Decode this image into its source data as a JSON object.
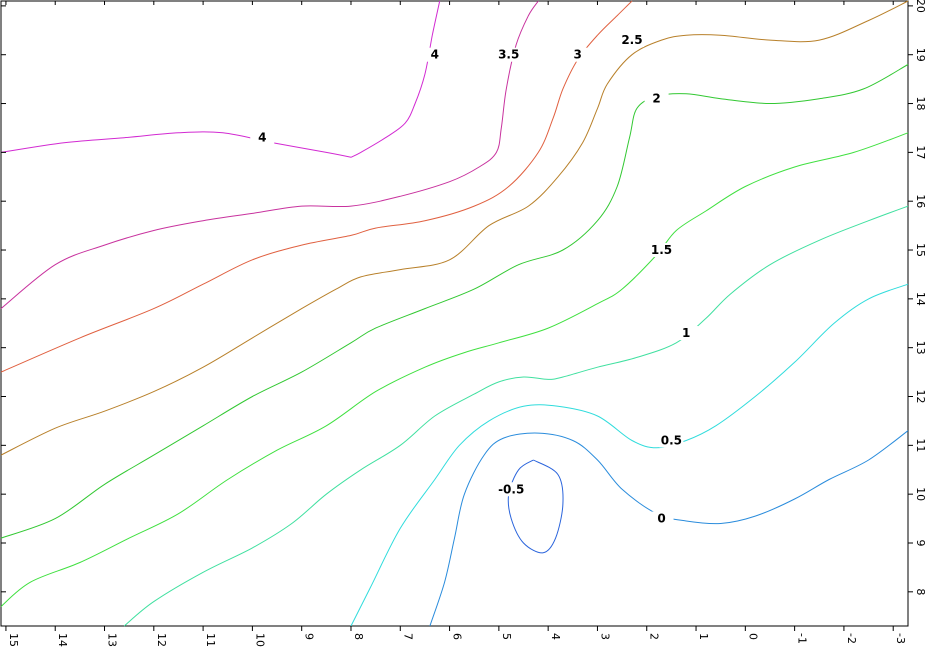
{
  "chart_data": {
    "type": "contour",
    "title": "",
    "xlabel": "",
    "ylabel": "",
    "x_ticks": [
      "15",
      "14",
      "13",
      "12",
      "11",
      "10",
      "9",
      "8",
      "7",
      "6",
      "5",
      "4",
      "3",
      "2",
      "1",
      "0",
      "-1",
      "-2",
      "-3"
    ],
    "y_ticks": [
      "20",
      "19",
      "18",
      "17",
      "16",
      "15",
      "14",
      "13",
      "12",
      "11",
      "10",
      "9",
      "8"
    ],
    "xlim": [
      15.1,
      -3.3
    ],
    "ylim": [
      7.3,
      20.1
    ],
    "levels": [
      -0.5,
      0,
      0.5,
      1,
      1.5,
      2,
      2.5,
      3,
      3.5,
      4
    ],
    "contours": [
      {
        "level": "4",
        "color": "#d22ad2",
        "label_at": [
          6.3,
          19.0
        ],
        "points": [
          [
            6.2,
            20.1
          ],
          [
            6.35,
            19.4
          ],
          [
            6.5,
            18.6
          ],
          [
            6.7,
            18.0
          ],
          [
            6.9,
            17.6
          ],
          [
            7.3,
            17.3
          ],
          [
            7.8,
            17.0
          ],
          [
            8.0,
            16.9
          ]
        ]
      },
      {
        "level": "4",
        "color": "#d22ad2",
        "label_at": [
          9.8,
          17.3
        ],
        "points": [
          [
            15.1,
            17.0
          ],
          [
            13.8,
            17.2
          ],
          [
            12.6,
            17.3
          ],
          [
            11.5,
            17.4
          ],
          [
            10.6,
            17.4
          ],
          [
            9.6,
            17.2
          ],
          [
            8.5,
            17.0
          ],
          [
            8.0,
            16.9
          ]
        ]
      },
      {
        "level": "3.5",
        "color": "#c8329e",
        "label_at": [
          4.8,
          19.0
        ],
        "points": [
          [
            4.2,
            20.1
          ],
          [
            4.4,
            19.8
          ],
          [
            4.65,
            19.2
          ],
          [
            4.85,
            18.3
          ],
          [
            4.95,
            17.5
          ],
          [
            5.05,
            17.0
          ],
          [
            5.4,
            16.7
          ],
          [
            6.0,
            16.4
          ],
          [
            7.0,
            16.1
          ],
          [
            8.0,
            15.9
          ],
          [
            9.0,
            15.9
          ],
          [
            10.0,
            15.75
          ],
          [
            11.0,
            15.6
          ],
          [
            12.0,
            15.4
          ],
          [
            13.0,
            15.1
          ],
          [
            14.0,
            14.7
          ],
          [
            15.1,
            13.8
          ]
        ]
      },
      {
        "level": "3",
        "color": "#e06040",
        "label_at": [
          3.4,
          19.0
        ],
        "points": [
          [
            2.3,
            20.1
          ],
          [
            2.6,
            19.8
          ],
          [
            3.0,
            19.4
          ],
          [
            3.4,
            18.9
          ],
          [
            3.7,
            18.3
          ],
          [
            3.9,
            17.7
          ],
          [
            4.2,
            17.0
          ],
          [
            4.8,
            16.3
          ],
          [
            5.5,
            15.9
          ],
          [
            6.5,
            15.6
          ],
          [
            7.5,
            15.45
          ],
          [
            8.0,
            15.3
          ],
          [
            9.0,
            15.1
          ],
          [
            10.0,
            14.8
          ],
          [
            11.0,
            14.3
          ],
          [
            12.0,
            13.8
          ],
          [
            13.5,
            13.2
          ],
          [
            15.1,
            12.5
          ]
        ]
      },
      {
        "level": "2.5",
        "color": "#b8802a",
        "label_at": [
          2.3,
          19.3
        ],
        "points": [
          [
            -3.3,
            20.1
          ],
          [
            -2.5,
            19.7
          ],
          [
            -1.5,
            19.3
          ],
          [
            -0.5,
            19.3
          ],
          [
            0.5,
            19.4
          ],
          [
            1.2,
            19.4
          ],
          [
            1.7,
            19.3
          ],
          [
            2.3,
            19.0
          ],
          [
            2.8,
            18.4
          ],
          [
            3.0,
            17.9
          ],
          [
            3.3,
            17.2
          ],
          [
            3.8,
            16.5
          ],
          [
            4.4,
            15.9
          ],
          [
            5.2,
            15.5
          ],
          [
            6.0,
            14.8
          ],
          [
            7.0,
            14.6
          ],
          [
            7.8,
            14.45
          ],
          [
            8.3,
            14.2
          ],
          [
            9.0,
            13.8
          ],
          [
            10.0,
            13.2
          ],
          [
            11.0,
            12.6
          ],
          [
            12.0,
            12.1
          ],
          [
            13.0,
            11.7
          ],
          [
            14.0,
            11.35
          ],
          [
            15.1,
            10.8
          ]
        ]
      },
      {
        "level": "2",
        "color": "#32c832",
        "label_at": [
          1.8,
          18.1
        ],
        "points": [
          [
            -3.3,
            18.8
          ],
          [
            -2.4,
            18.3
          ],
          [
            -1.5,
            18.1
          ],
          [
            -0.5,
            18.0
          ],
          [
            0.5,
            18.1
          ],
          [
            1.2,
            18.2
          ],
          [
            1.8,
            18.15
          ],
          [
            2.2,
            17.9
          ],
          [
            2.35,
            17.3
          ],
          [
            2.6,
            16.3
          ],
          [
            3.0,
            15.6
          ],
          [
            3.7,
            15.0
          ],
          [
            4.6,
            14.7
          ],
          [
            5.5,
            14.2
          ],
          [
            6.5,
            13.8
          ],
          [
            7.5,
            13.4
          ],
          [
            8.0,
            13.1
          ],
          [
            9.0,
            12.5
          ],
          [
            10.0,
            12.0
          ],
          [
            11.0,
            11.4
          ],
          [
            12.0,
            10.8
          ],
          [
            13.0,
            10.2
          ],
          [
            14.0,
            9.5
          ],
          [
            15.1,
            9.1
          ]
        ]
      },
      {
        "level": "1.5",
        "color": "#40e040",
        "label_at": [
          1.7,
          15.0
        ],
        "points": [
          [
            -3.3,
            17.4
          ],
          [
            -2.2,
            17.0
          ],
          [
            -1.0,
            16.7
          ],
          [
            0.0,
            16.3
          ],
          [
            0.8,
            15.8
          ],
          [
            1.4,
            15.4
          ],
          [
            1.8,
            14.9
          ],
          [
            2.5,
            14.2
          ],
          [
            3.0,
            13.9
          ],
          [
            4.0,
            13.4
          ],
          [
            5.0,
            13.1
          ],
          [
            5.7,
            12.9
          ],
          [
            6.5,
            12.6
          ],
          [
            7.5,
            12.1
          ],
          [
            8.5,
            11.4
          ],
          [
            9.5,
            10.9
          ],
          [
            10.5,
            10.3
          ],
          [
            11.5,
            9.6
          ],
          [
            12.5,
            9.1
          ],
          [
            13.5,
            8.6
          ],
          [
            14.5,
            8.2
          ],
          [
            15.1,
            7.7
          ]
        ]
      },
      {
        "level": "1",
        "color": "#40e0a0",
        "label_at": [
          1.2,
          13.3
        ],
        "points": [
          [
            -3.3,
            15.9
          ],
          [
            -2.5,
            15.6
          ],
          [
            -1.5,
            15.2
          ],
          [
            -0.5,
            14.7
          ],
          [
            0.3,
            14.1
          ],
          [
            0.8,
            13.6
          ],
          [
            1.4,
            13.1
          ],
          [
            2.2,
            12.8
          ],
          [
            3.0,
            12.6
          ],
          [
            3.7,
            12.4
          ],
          [
            4.0,
            12.35
          ],
          [
            4.5,
            12.4
          ],
          [
            5.0,
            12.3
          ],
          [
            5.5,
            12.05
          ],
          [
            6.3,
            11.6
          ],
          [
            7.0,
            11.0
          ],
          [
            7.8,
            10.5
          ],
          [
            8.5,
            10.0
          ],
          [
            9.2,
            9.4
          ],
          [
            10.0,
            8.9
          ],
          [
            11.0,
            8.4
          ],
          [
            12.0,
            7.8
          ],
          [
            12.6,
            7.3
          ]
        ]
      },
      {
        "level": "0.5",
        "color": "#30dcdc",
        "label_at": [
          1.5,
          11.1
        ],
        "points": [
          [
            -3.3,
            14.3
          ],
          [
            -2.5,
            14.0
          ],
          [
            -1.8,
            13.5
          ],
          [
            -1.0,
            12.7
          ],
          [
            -0.2,
            12.0
          ],
          [
            0.6,
            11.4
          ],
          [
            1.2,
            11.1
          ],
          [
            1.8,
            10.95
          ],
          [
            2.3,
            11.1
          ],
          [
            3.0,
            11.6
          ],
          [
            3.8,
            11.8
          ],
          [
            4.5,
            11.8
          ],
          [
            5.2,
            11.5
          ],
          [
            5.8,
            11.0
          ],
          [
            6.3,
            10.3
          ],
          [
            7.0,
            9.3
          ],
          [
            7.6,
            8.1
          ],
          [
            8.0,
            7.3
          ]
        ]
      },
      {
        "level": "0",
        "color": "#2a8cdc",
        "label_at": [
          1.7,
          9.5
        ],
        "points": [
          [
            -3.3,
            11.3
          ],
          [
            -2.5,
            10.7
          ],
          [
            -1.7,
            10.3
          ],
          [
            -1.0,
            9.9
          ],
          [
            -0.2,
            9.55
          ],
          [
            0.5,
            9.4
          ],
          [
            1.2,
            9.45
          ],
          [
            1.8,
            9.6
          ],
          [
            2.5,
            10.1
          ],
          [
            3.0,
            10.7
          ],
          [
            3.5,
            11.1
          ],
          [
            4.2,
            11.25
          ],
          [
            4.9,
            11.15
          ],
          [
            5.3,
            10.8
          ],
          [
            5.7,
            10.0
          ],
          [
            5.9,
            9.1
          ],
          [
            6.1,
            8.2
          ],
          [
            6.4,
            7.3
          ]
        ]
      },
      {
        "level": "-0.5",
        "color": "#2a64dc",
        "label_at": [
          4.75,
          10.1
        ],
        "points": [
          [
            4.3,
            10.7
          ],
          [
            3.8,
            10.4
          ],
          [
            3.7,
            9.8
          ],
          [
            3.85,
            9.1
          ],
          [
            4.1,
            8.8
          ],
          [
            4.5,
            9.0
          ],
          [
            4.75,
            9.5
          ],
          [
            4.8,
            10.0
          ],
          [
            4.6,
            10.5
          ],
          [
            4.3,
            10.7
          ]
        ]
      }
    ]
  }
}
